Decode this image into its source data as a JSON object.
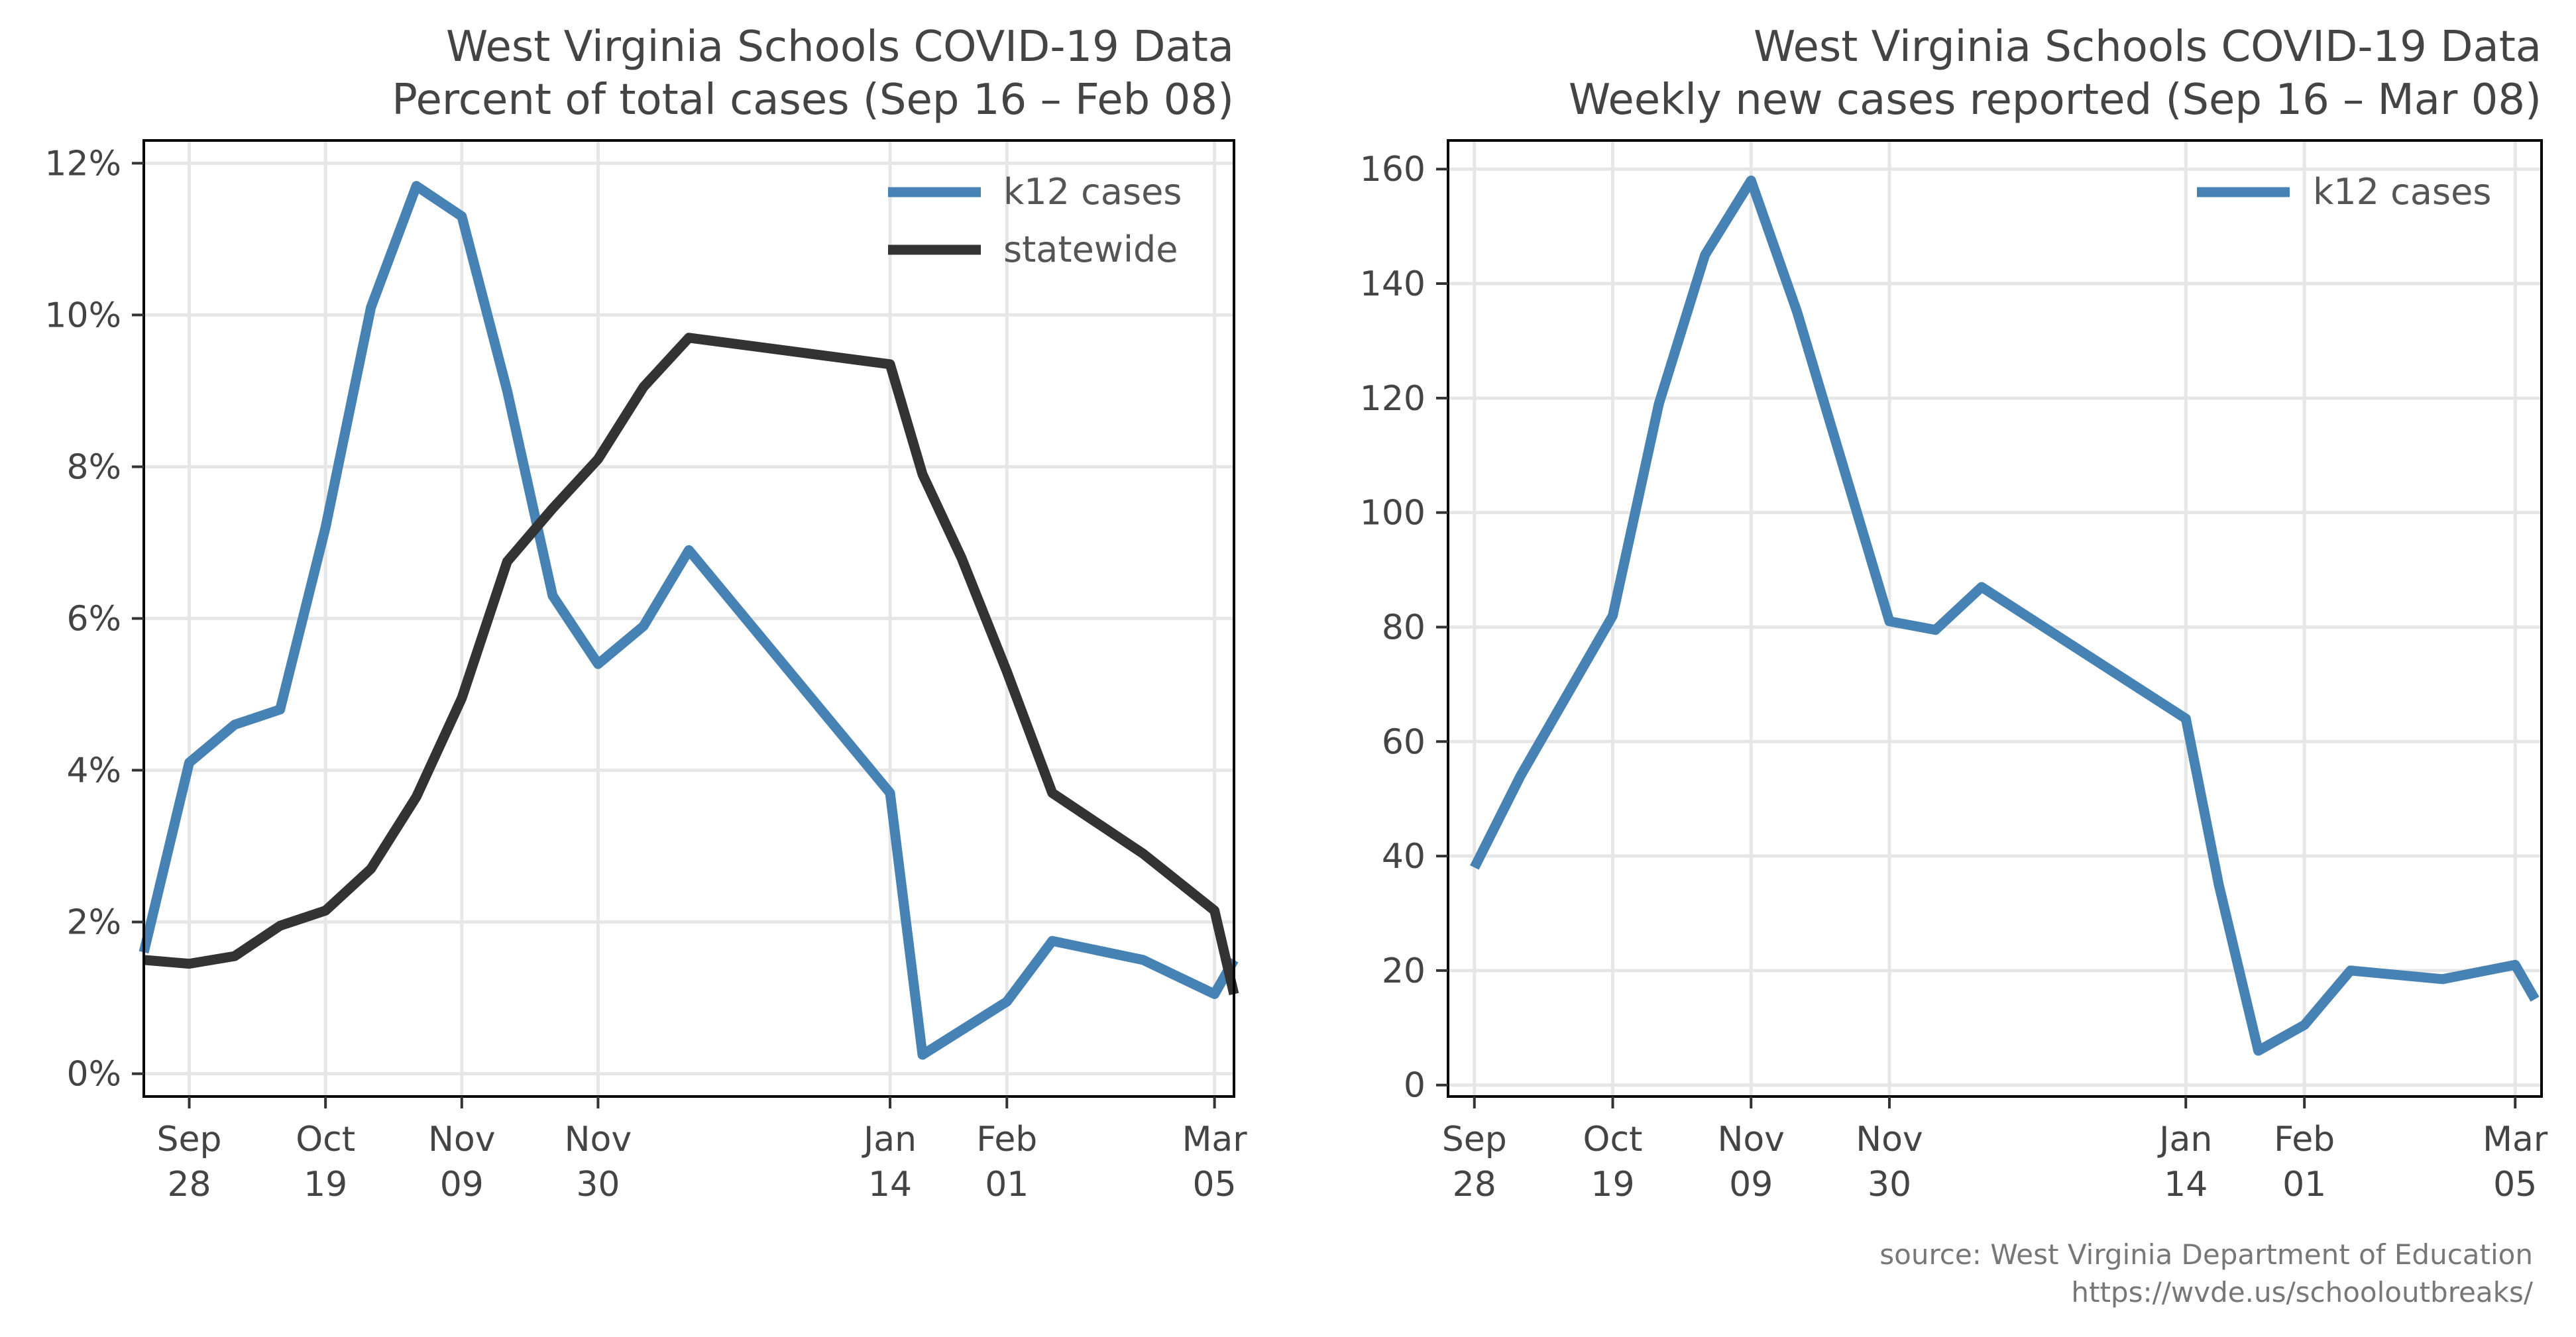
{
  "chart_data": [
    {
      "type": "line",
      "title": "West Virginia Schools COVID-19 Data",
      "subtitle": "Percent of total cases (Sep 16 – Feb 08)",
      "xlabel": "",
      "ylabel": "",
      "x_tick_labels": [
        [
          "Sep",
          "28"
        ],
        [
          "Oct",
          "19"
        ],
        [
          "Nov",
          "09"
        ],
        [
          "Nov",
          "30"
        ],
        [
          "Jan",
          "14"
        ],
        [
          "Feb",
          "01"
        ],
        [
          "Mar",
          "05"
        ]
      ],
      "x_tick_dates": [
        "2020-09-28",
        "2020-10-19",
        "2020-11-09",
        "2020-11-30",
        "2021-01-14",
        "2021-02-01",
        "2021-03-05"
      ],
      "xlim": [
        "2020-09-21",
        "2021-03-08"
      ],
      "y_ticks": [
        0,
        2,
        4,
        6,
        8,
        10,
        12
      ],
      "y_tick_labels": [
        "0%",
        "2%",
        "4%",
        "6%",
        "8%",
        "10%",
        "12%"
      ],
      "ylim": [
        -0.3,
        12.3
      ],
      "grid": true,
      "legend_position": "top-right",
      "series": [
        {
          "name": "k12 cases",
          "color": "#4682b4",
          "x": [
            "2020-09-21",
            "2020-09-28",
            "2020-10-05",
            "2020-10-12",
            "2020-10-19",
            "2020-10-26",
            "2020-11-02",
            "2020-11-09",
            "2020-11-16",
            "2020-11-23",
            "2020-11-30",
            "2020-12-07",
            "2020-12-14",
            "2021-01-14",
            "2021-01-19",
            "2021-02-01",
            "2021-02-08",
            "2021-02-22",
            "2021-03-05",
            "2021-03-08"
          ],
          "y": [
            1.6,
            4.1,
            4.6,
            4.8,
            7.2,
            10.1,
            11.7,
            11.3,
            9.0,
            6.3,
            5.4,
            5.9,
            6.9,
            3.7,
            0.25,
            0.95,
            1.75,
            1.5,
            1.05,
            1.5
          ]
        },
        {
          "name": "statewide",
          "color": "#333333",
          "x": [
            "2020-09-21",
            "2020-09-28",
            "2020-10-05",
            "2020-10-12",
            "2020-10-19",
            "2020-10-26",
            "2020-11-02",
            "2020-11-09",
            "2020-11-16",
            "2020-11-23",
            "2020-11-30",
            "2020-12-07",
            "2020-12-14",
            "2021-01-14",
            "2021-01-19",
            "2021-01-25",
            "2021-02-01",
            "2021-02-08",
            "2021-02-22",
            "2021-03-05",
            "2021-03-08"
          ],
          "y": [
            1.5,
            1.45,
            1.55,
            1.95,
            2.15,
            2.7,
            3.65,
            4.95,
            6.75,
            7.45,
            8.1,
            9.05,
            9.7,
            9.35,
            7.9,
            6.8,
            5.3,
            3.7,
            2.9,
            2.15,
            1.05
          ]
        }
      ]
    },
    {
      "type": "line",
      "title": "West Virginia Schools COVID-19 Data",
      "subtitle": "Weekly new cases reported (Sep 16 – Mar 08)",
      "xlabel": "",
      "ylabel": "",
      "x_tick_labels": [
        [
          "Sep",
          "28"
        ],
        [
          "Oct",
          "19"
        ],
        [
          "Nov",
          "09"
        ],
        [
          "Nov",
          "30"
        ],
        [
          "Jan",
          "14"
        ],
        [
          "Feb",
          "01"
        ],
        [
          "Mar",
          "05"
        ]
      ],
      "x_tick_dates": [
        "2020-09-28",
        "2020-10-19",
        "2020-11-09",
        "2020-11-30",
        "2021-01-14",
        "2021-02-01",
        "2021-03-05"
      ],
      "xlim": [
        "2020-09-24",
        "2021-03-09"
      ],
      "y_ticks": [
        0,
        20,
        40,
        60,
        80,
        100,
        120,
        140,
        160
      ],
      "y_tick_labels": [
        "0",
        "20",
        "40",
        "60",
        "80",
        "100",
        "120",
        "140",
        "160"
      ],
      "ylim": [
        -2,
        165
      ],
      "grid": true,
      "legend_position": "top-right",
      "series": [
        {
          "name": "k12 cases",
          "color": "#4682b4",
          "x": [
            "2020-09-28",
            "2020-10-05",
            "2020-10-12",
            "2020-10-19",
            "2020-10-26",
            "2020-11-02",
            "2020-11-09",
            "2020-11-16",
            "2020-11-30",
            "2020-12-07",
            "2020-12-14",
            "2021-01-14",
            "2021-01-19",
            "2021-01-25",
            "2021-02-01",
            "2021-02-08",
            "2021-02-22",
            "2021-03-05",
            "2021-03-08"
          ],
          "y": [
            38,
            54,
            68,
            82,
            119,
            145,
            158,
            135,
            81,
            79.5,
            87,
            64,
            35,
            6,
            10.5,
            20,
            18.5,
            21,
            15
          ]
        }
      ]
    }
  ],
  "source": {
    "line1": "source: West Virginia Department of Education",
    "line2": "https://wvde.us/schooloutbreaks/"
  }
}
